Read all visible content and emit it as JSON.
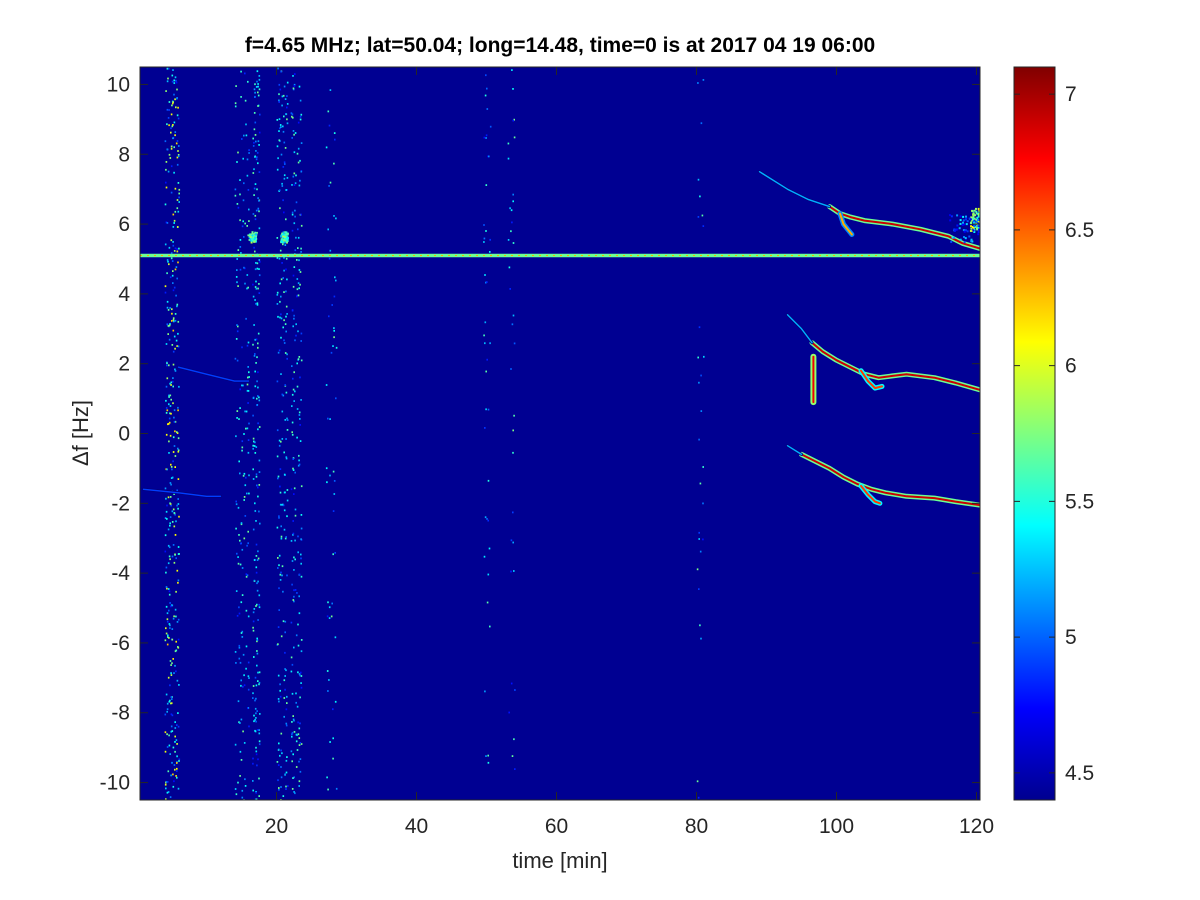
{
  "chart_data": {
    "type": "heatmap",
    "title": "f=4.65 MHz;  lat=50.04; long=14.48, time=0 is at 2017 04 19 06:00",
    "xlabel": "time [min]",
    "ylabel": "Δf [Hz]",
    "xlim": [
      0.5,
      120.5
    ],
    "ylim": [
      -10.5,
      10.5
    ],
    "xticks": [
      20,
      40,
      60,
      80,
      100,
      120
    ],
    "xtick_labels": [
      "20",
      "40",
      "60",
      "80",
      "100",
      "120"
    ],
    "yticks": [
      -10,
      -8,
      -6,
      -4,
      -2,
      0,
      2,
      4,
      6,
      8,
      10
    ],
    "ytick_labels": [
      "-10",
      "-8",
      "-6",
      "-4",
      "-2",
      "0",
      "2",
      "4",
      "6",
      "8",
      "10"
    ],
    "colorbar": {
      "colormap": "jet",
      "clim": [
        4.4,
        7.1
      ],
      "ticks": [
        4.5,
        5,
        5.5,
        6,
        6.5,
        7
      ],
      "tick_labels": [
        "4.5",
        "5",
        "5.5",
        "6",
        "6.5",
        "7"
      ]
    },
    "background_value": 4.45,
    "features": [
      {
        "name": "carrier line",
        "kind": "hline",
        "y": 5.1,
        "x": [
          0.5,
          120.5
        ],
        "value": 5.7
      },
      {
        "name": "noise band",
        "kind": "vband",
        "x": [
          4,
          6
        ],
        "y": [
          -10.5,
          10.5
        ],
        "density": 0.55
      },
      {
        "name": "noise band",
        "kind": "vband",
        "x": [
          14,
          16
        ],
        "y": [
          -10.5,
          10.5
        ],
        "density": 0.25
      },
      {
        "name": "noise band",
        "kind": "vband",
        "x": [
          16.5,
          17.5
        ],
        "y": [
          -10.5,
          10.5
        ],
        "density": 0.3
      },
      {
        "name": "noise band",
        "kind": "vband",
        "x": [
          20,
          21.5
        ],
        "y": [
          -10.5,
          10.5
        ],
        "density": 0.3
      },
      {
        "name": "noise band",
        "kind": "vband",
        "x": [
          22,
          23.5
        ],
        "y": [
          -10.5,
          10.5
        ],
        "density": 0.3
      },
      {
        "name": "noise band",
        "kind": "vband",
        "x": [
          27,
          28.5
        ],
        "y": [
          -10.5,
          10.5
        ],
        "density": 0.08
      },
      {
        "name": "noise band",
        "kind": "vband",
        "x": [
          49.5,
          50.5
        ],
        "y": [
          -10.5,
          10.5
        ],
        "density": 0.06
      },
      {
        "name": "noise band",
        "kind": "vband",
        "x": [
          53,
          54
        ],
        "y": [
          -10.5,
          10.5
        ],
        "density": 0.05
      },
      {
        "name": "noise band",
        "kind": "vband",
        "x": [
          80,
          81
        ],
        "y": [
          -10.5,
          10.5
        ],
        "density": 0.04
      },
      {
        "name": "upper trace",
        "kind": "curve",
        "value": 6.9,
        "points": [
          [
            99,
            6.5
          ],
          [
            100.5,
            6.3
          ],
          [
            102,
            6.2
          ],
          [
            104,
            6.1
          ],
          [
            108,
            6.0
          ],
          [
            112,
            5.85
          ],
          [
            116,
            5.65
          ],
          [
            118,
            5.45
          ],
          [
            120.5,
            5.3
          ]
        ]
      },
      {
        "name": "upper trace faint",
        "kind": "curve",
        "value": 5.2,
        "points": [
          [
            89,
            7.5
          ],
          [
            93,
            7.0
          ],
          [
            96,
            6.7
          ],
          [
            99,
            6.5
          ]
        ]
      },
      {
        "name": "upper trace hook",
        "kind": "curve",
        "value": 6.3,
        "points": [
          [
            100.5,
            6.3
          ],
          [
            101,
            6.0
          ],
          [
            101.8,
            5.8
          ],
          [
            102.2,
            5.7
          ]
        ]
      },
      {
        "name": "middle trace",
        "kind": "curve",
        "value": 6.9,
        "points": [
          [
            96.5,
            2.6
          ],
          [
            98,
            2.35
          ],
          [
            100,
            2.1
          ],
          [
            102,
            1.9
          ],
          [
            104,
            1.7
          ],
          [
            106,
            1.6
          ],
          [
            108,
            1.65
          ],
          [
            110,
            1.7
          ],
          [
            114,
            1.6
          ],
          [
            117,
            1.45
          ],
          [
            120.5,
            1.25
          ]
        ]
      },
      {
        "name": "middle trace faint",
        "kind": "curve",
        "value": 5.2,
        "points": [
          [
            93,
            3.4
          ],
          [
            95,
            3.0
          ],
          [
            96.5,
            2.6
          ]
        ]
      },
      {
        "name": "middle trace hook",
        "kind": "curve",
        "value": 6.6,
        "points": [
          [
            103.5,
            1.8
          ],
          [
            104.5,
            1.5
          ],
          [
            105.5,
            1.3
          ],
          [
            106.5,
            1.35
          ]
        ]
      },
      {
        "name": "vertical flare",
        "kind": "vsegment",
        "x": 96.7,
        "y": [
          0.9,
          2.2
        ],
        "value": 6.8
      },
      {
        "name": "lower trace",
        "kind": "curve",
        "value": 6.9,
        "points": [
          [
            95,
            -0.6
          ],
          [
            97,
            -0.8
          ],
          [
            99,
            -1.0
          ],
          [
            101,
            -1.25
          ],
          [
            103,
            -1.45
          ],
          [
            105,
            -1.6
          ],
          [
            107,
            -1.7
          ],
          [
            110,
            -1.8
          ],
          [
            114,
            -1.85
          ],
          [
            117,
            -1.95
          ],
          [
            120.5,
            -2.05
          ]
        ]
      },
      {
        "name": "lower trace faint",
        "kind": "curve",
        "value": 5.2,
        "points": [
          [
            93,
            -0.35
          ],
          [
            95,
            -0.6
          ]
        ]
      },
      {
        "name": "lower trace hook",
        "kind": "curve",
        "value": 6.6,
        "points": [
          [
            103.5,
            -1.5
          ],
          [
            104.5,
            -1.75
          ],
          [
            105.5,
            -1.95
          ],
          [
            106.2,
            -2.0
          ]
        ]
      },
      {
        "name": "cluster",
        "kind": "blob",
        "x": [
          119,
          120.5
        ],
        "y": [
          5.8,
          6.5
        ],
        "value": 5.8
      },
      {
        "name": "cluster",
        "kind": "blob",
        "x": [
          116,
          120.5
        ],
        "y": [
          5.5,
          6.3
        ],
        "value": 5.0
      },
      {
        "name": "cluster",
        "kind": "blob",
        "x": [
          16,
          17
        ],
        "y": [
          5.5,
          5.8
        ],
        "value": 5.6
      },
      {
        "name": "cluster",
        "kind": "blob",
        "x": [
          20.5,
          21.5
        ],
        "y": [
          5.5,
          5.8
        ],
        "value": 5.6
      },
      {
        "name": "faint streak",
        "kind": "curve",
        "value": 4.9,
        "points": [
          [
            6,
            1.9
          ],
          [
            10,
            1.7
          ],
          [
            14,
            1.5
          ],
          [
            16,
            1.5
          ]
        ]
      },
      {
        "name": "faint streak",
        "kind": "curve",
        "value": 4.9,
        "points": [
          [
            1,
            -1.6
          ],
          [
            6,
            -1.7
          ],
          [
            10,
            -1.8
          ],
          [
            12,
            -1.8
          ]
        ]
      }
    ]
  }
}
